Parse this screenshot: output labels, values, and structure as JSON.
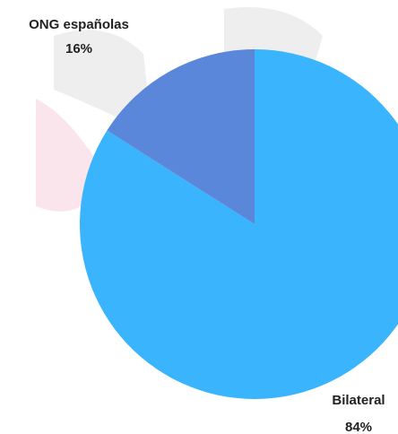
{
  "chart_data": {
    "type": "pie",
    "categories": [
      "Bilateral",
      "ONG españolas"
    ],
    "values": [
      84,
      16
    ],
    "value_labels": [
      "84%",
      "16%"
    ],
    "colors": [
      "#3ab4fd",
      "#5b87da"
    ]
  }
}
